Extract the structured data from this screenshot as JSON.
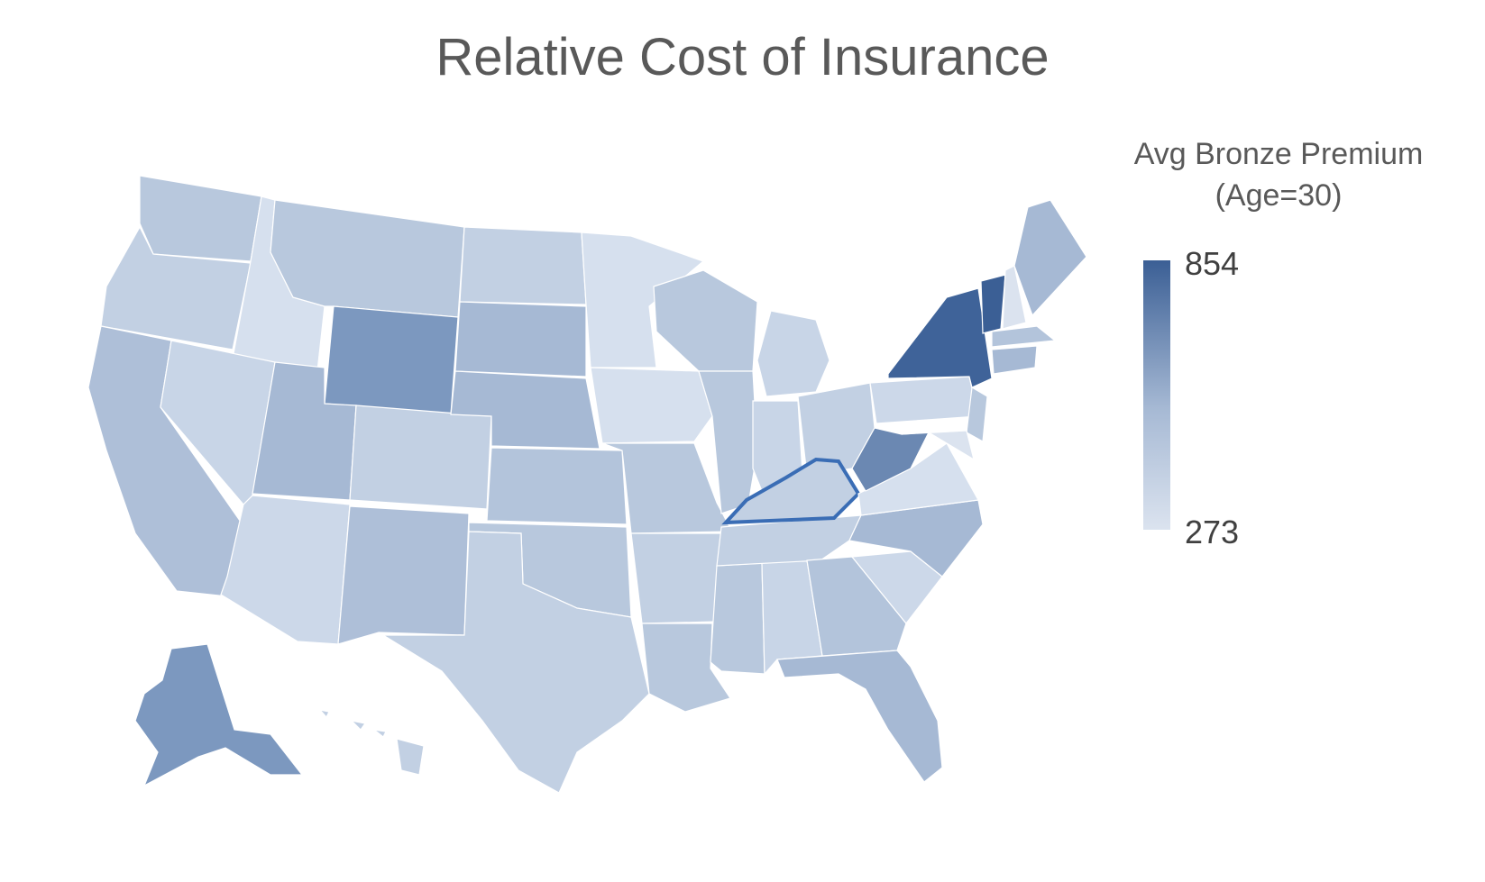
{
  "title": "Relative Cost of Insurance",
  "legend": {
    "title_line1": "Avg Bronze Premium",
    "title_line2": "(Age=30)",
    "max": "854",
    "min": "273",
    "color_max": "#3b5f95",
    "color_min": "#dbe3ef"
  },
  "highlight": {
    "state": "Kentucky",
    "outline_color": "#3a6db5"
  },
  "colors": {
    "darkest": "#3b5f95",
    "dark": "#6b88b2",
    "medium": "#a6b9d4",
    "light": "#c2d0e3",
    "lightest": "#d6e0ee"
  }
}
